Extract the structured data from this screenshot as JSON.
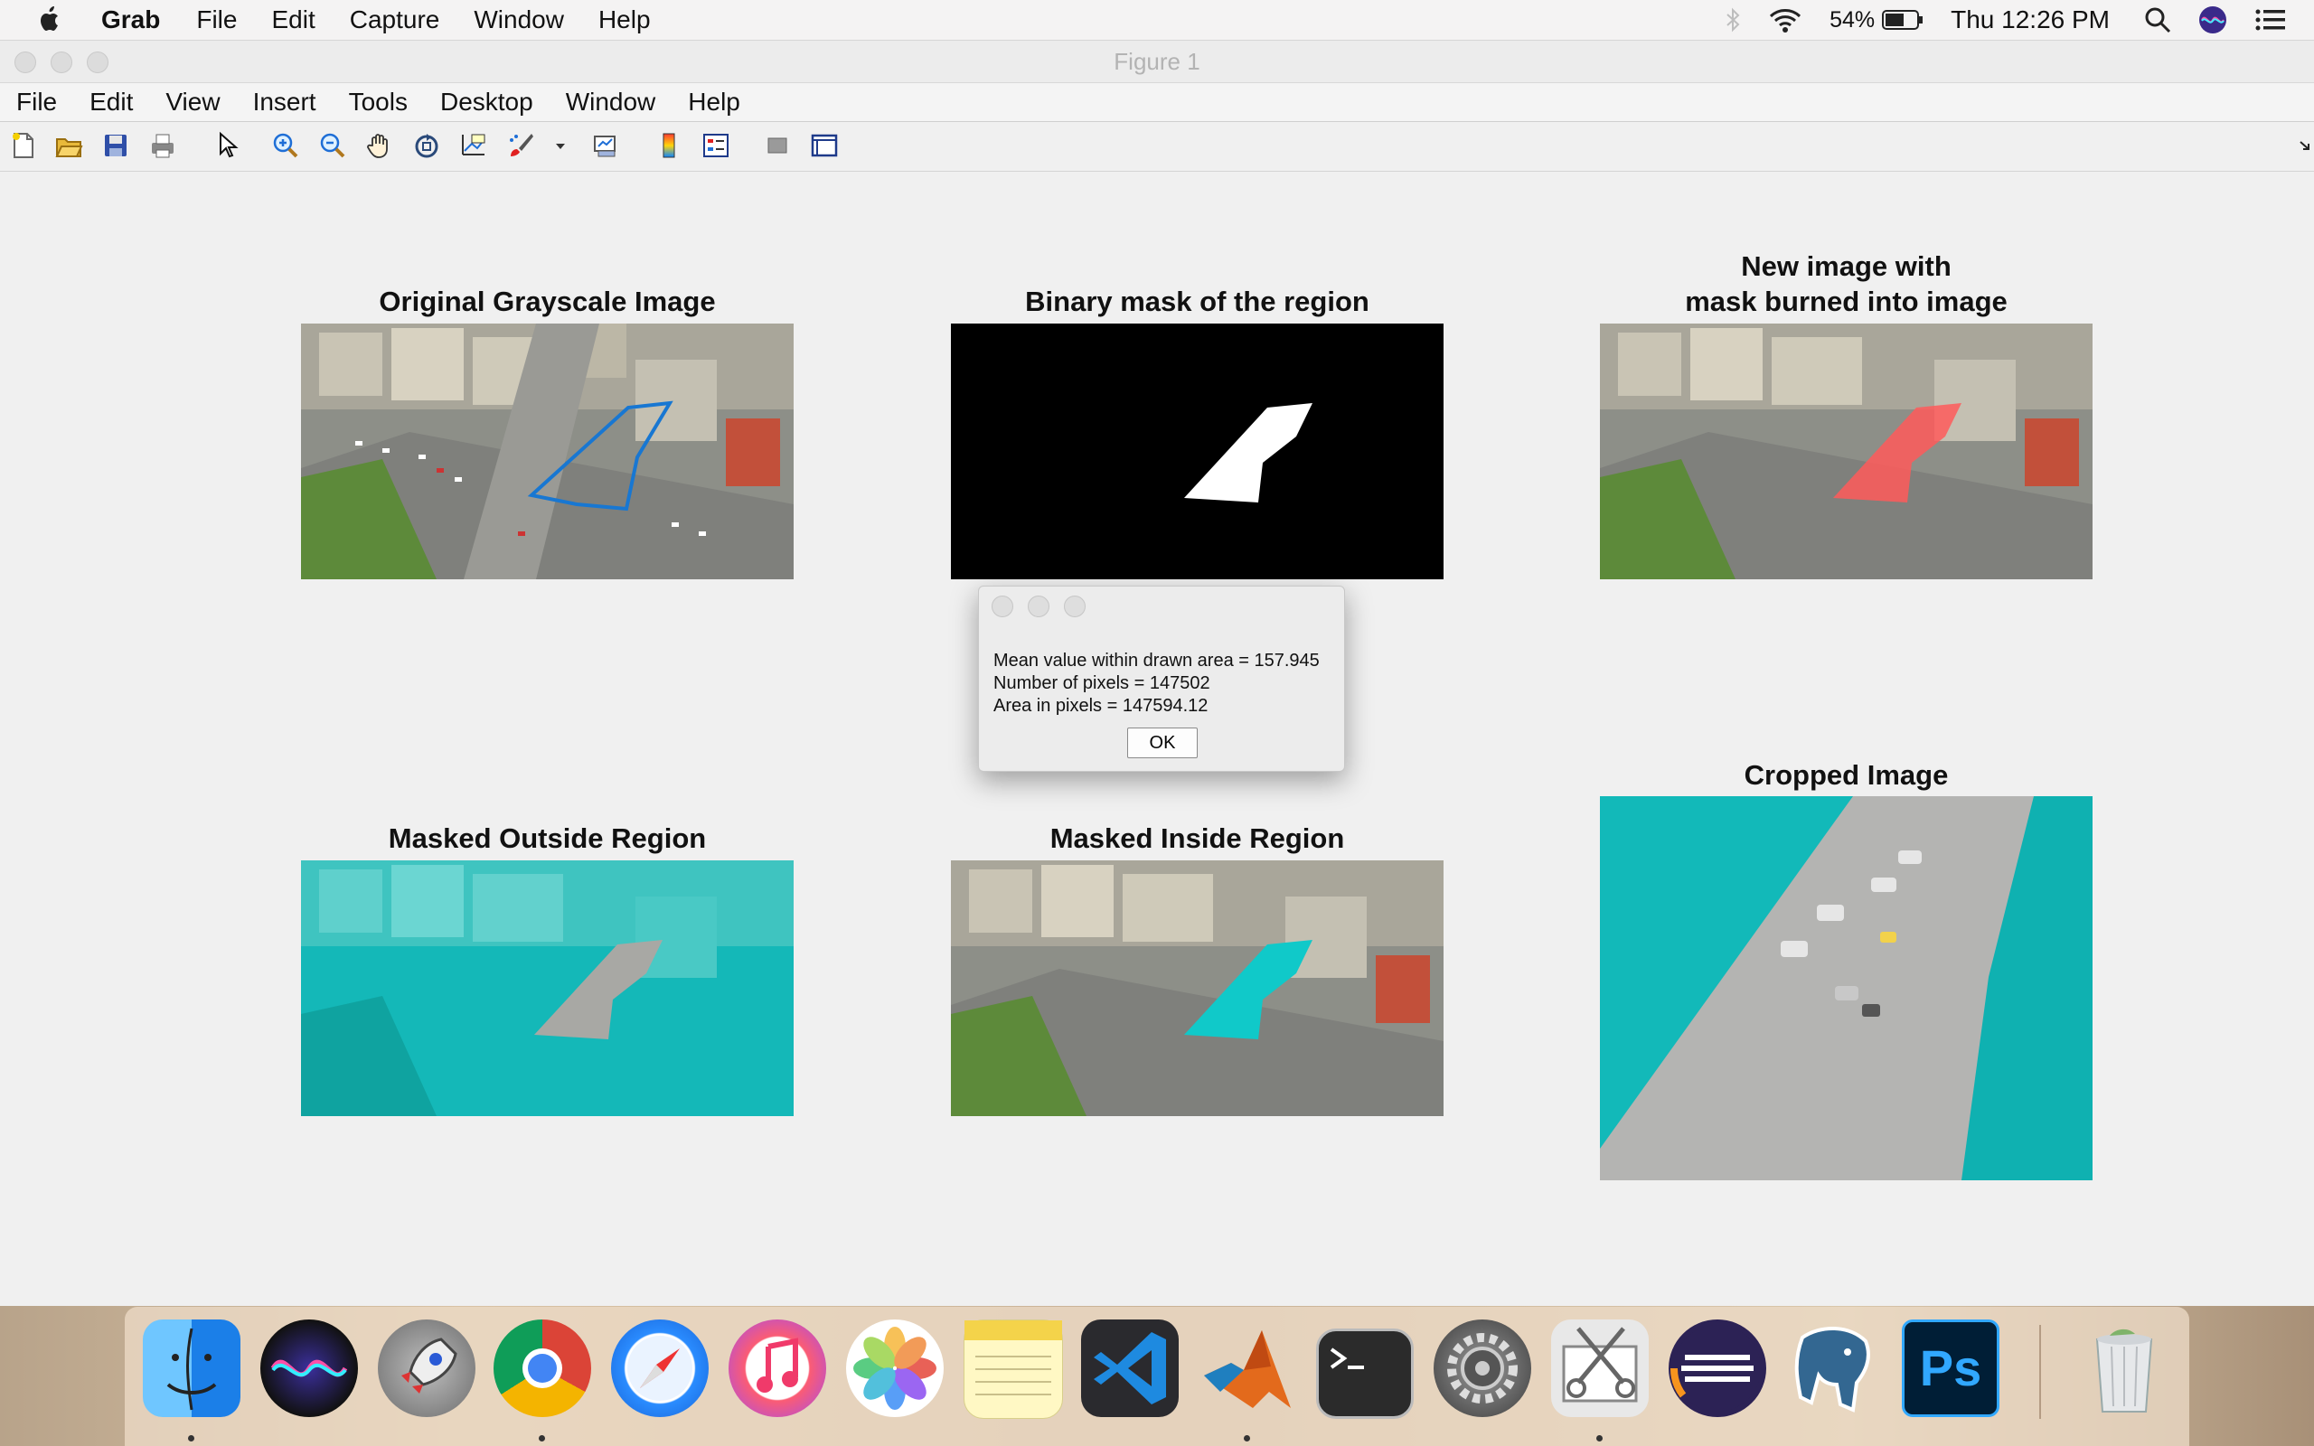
{
  "menubar": {
    "app": "Grab",
    "items": [
      "File",
      "Edit",
      "Capture",
      "Window",
      "Help"
    ],
    "battery": "54%",
    "clock": "Thu 12:26 PM"
  },
  "window": {
    "title": "Figure 1",
    "menu": [
      "File",
      "Edit",
      "View",
      "Insert",
      "Tools",
      "Desktop",
      "Window",
      "Help"
    ]
  },
  "toolbar": {
    "icons": [
      "new-figure-icon",
      "open-file-icon",
      "save-icon",
      "print-icon",
      "pointer-icon",
      "zoom-in-icon",
      "zoom-out-icon",
      "pan-hand-icon",
      "rotate-3d-icon",
      "data-cursor-icon",
      "brush-icon",
      "dropdown-arrow-icon",
      "link-plot-icon",
      "colorbar-icon",
      "legend-icon",
      "hide-plot-tools-icon",
      "show-plot-tools-icon"
    ]
  },
  "plots": {
    "original": "Original Grayscale Image",
    "binary": "Binary mask of the region",
    "burned_line1": "New image with",
    "burned_line2": "mask burned into image",
    "outside": "Masked Outside Region",
    "inside": "Masked Inside Region",
    "cropped": "Cropped Image"
  },
  "dialog": {
    "line1": "Mean value within drawn area = 157.945",
    "line2": "Number of pixels = 147502",
    "line3": "Area in pixels = 147594.12",
    "ok": "OK"
  },
  "dock": {
    "apps": [
      "finder-icon",
      "siri-icon",
      "launchpad-icon",
      "chrome-icon",
      "safari-icon",
      "itunes-icon",
      "photos-icon",
      "notes-icon",
      "vscode-icon",
      "matlab-icon",
      "terminal-icon",
      "system-preferences-icon",
      "screenshot-tool-icon",
      "eclipse-icon",
      "postgresql-icon",
      "photoshop-icon",
      "trash-icon"
    ],
    "photoshop_label": "Ps"
  },
  "colors": {
    "cyan_mask": "#10c9c9",
    "red_mask": "#ff5a5a",
    "roi_line": "#1877d2"
  }
}
